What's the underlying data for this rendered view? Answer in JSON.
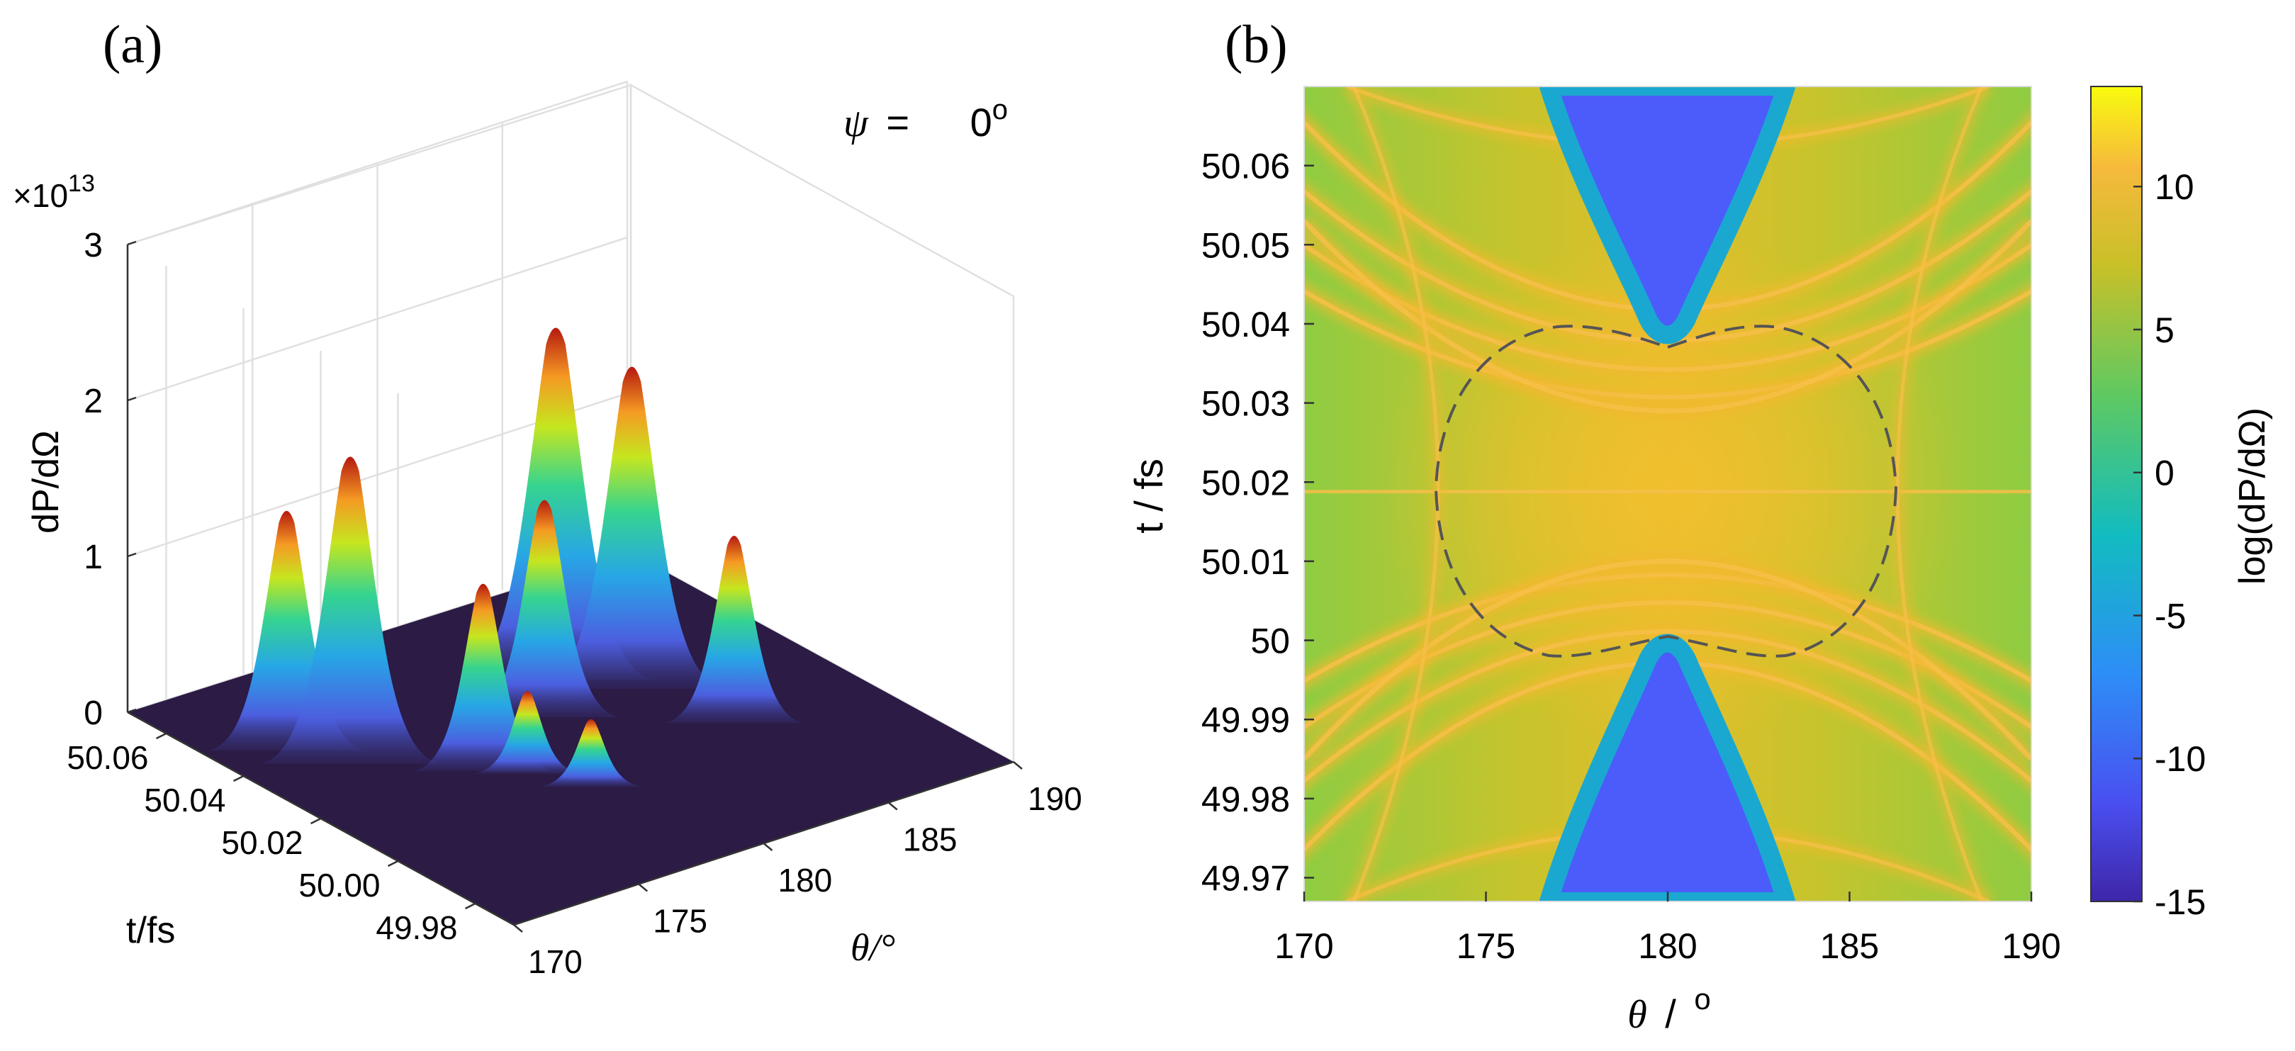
{
  "chart_data": [
    {
      "panel_label": "(a)",
      "type": "surface3d",
      "annotation": {
        "symbol": "ψ",
        "equals": "=",
        "value": "0",
        "unit": "o"
      },
      "zlabel": "dP/dΩ",
      "zscale": {
        "prefix": "×10",
        "exponent": "13"
      },
      "zticks": [
        "0",
        "1",
        "2",
        "3"
      ],
      "zlim": [
        0,
        3
      ],
      "ylabel": "t/fs",
      "yticks": [
        "50.06",
        "50.04",
        "50.02",
        "50.00",
        "49.98"
      ],
      "xlabel": "θ/°",
      "xticks": [
        "170",
        "175",
        "180",
        "185",
        "190"
      ],
      "xlim": [
        170,
        190
      ],
      "ylim": [
        49.97,
        50.07
      ],
      "peaks": [
        {
          "theta": 172.5,
          "t": 50.045,
          "height": 1.55
        },
        {
          "theta": 173.5,
          "t": 50.035,
          "height": 2.0
        },
        {
          "theta": 176.5,
          "t": 50.02,
          "height": 1.2
        },
        {
          "theta": 177.5,
          "t": 50.015,
          "height": 0.5
        },
        {
          "theta": 178.5,
          "t": 50.005,
          "height": 0.4
        },
        {
          "theta": 180.5,
          "t": 50.03,
          "height": 1.4
        },
        {
          "theta": 182.5,
          "t": 50.04,
          "height": 2.3
        },
        {
          "theta": 184.0,
          "t": 50.03,
          "height": 2.1
        },
        {
          "theta": 185.0,
          "t": 50.01,
          "height": 1.2
        }
      ]
    },
    {
      "panel_label": "(b)",
      "type": "heatmap",
      "xlabel": "θ / o",
      "xlabel_symbol": "θ",
      "xlabel_sep": "/",
      "xlabel_unit": "o",
      "xticks": [
        "170",
        "175",
        "180",
        "185",
        "190"
      ],
      "xlim": [
        170,
        190
      ],
      "ylabel": "t / fs",
      "yticks": [
        "49.97",
        "49.98",
        "49.99",
        "50",
        "50.01",
        "50.02",
        "50.03",
        "50.04",
        "50.05",
        "50.06"
      ],
      "ylim": [
        49.967,
        50.07
      ],
      "colorbar": {
        "label": "log(dP/dΩ)",
        "ticks": [
          "-15",
          "-10",
          "-5",
          "0",
          "5",
          "10"
        ],
        "range": [
          -15,
          13.5
        ]
      },
      "colors": {
        "background": "#9ccd3a",
        "fan": "#d9c02a",
        "band": "#f2b82e",
        "low": "#4b5cfb",
        "edge": "#1aa8d0"
      }
    }
  ]
}
